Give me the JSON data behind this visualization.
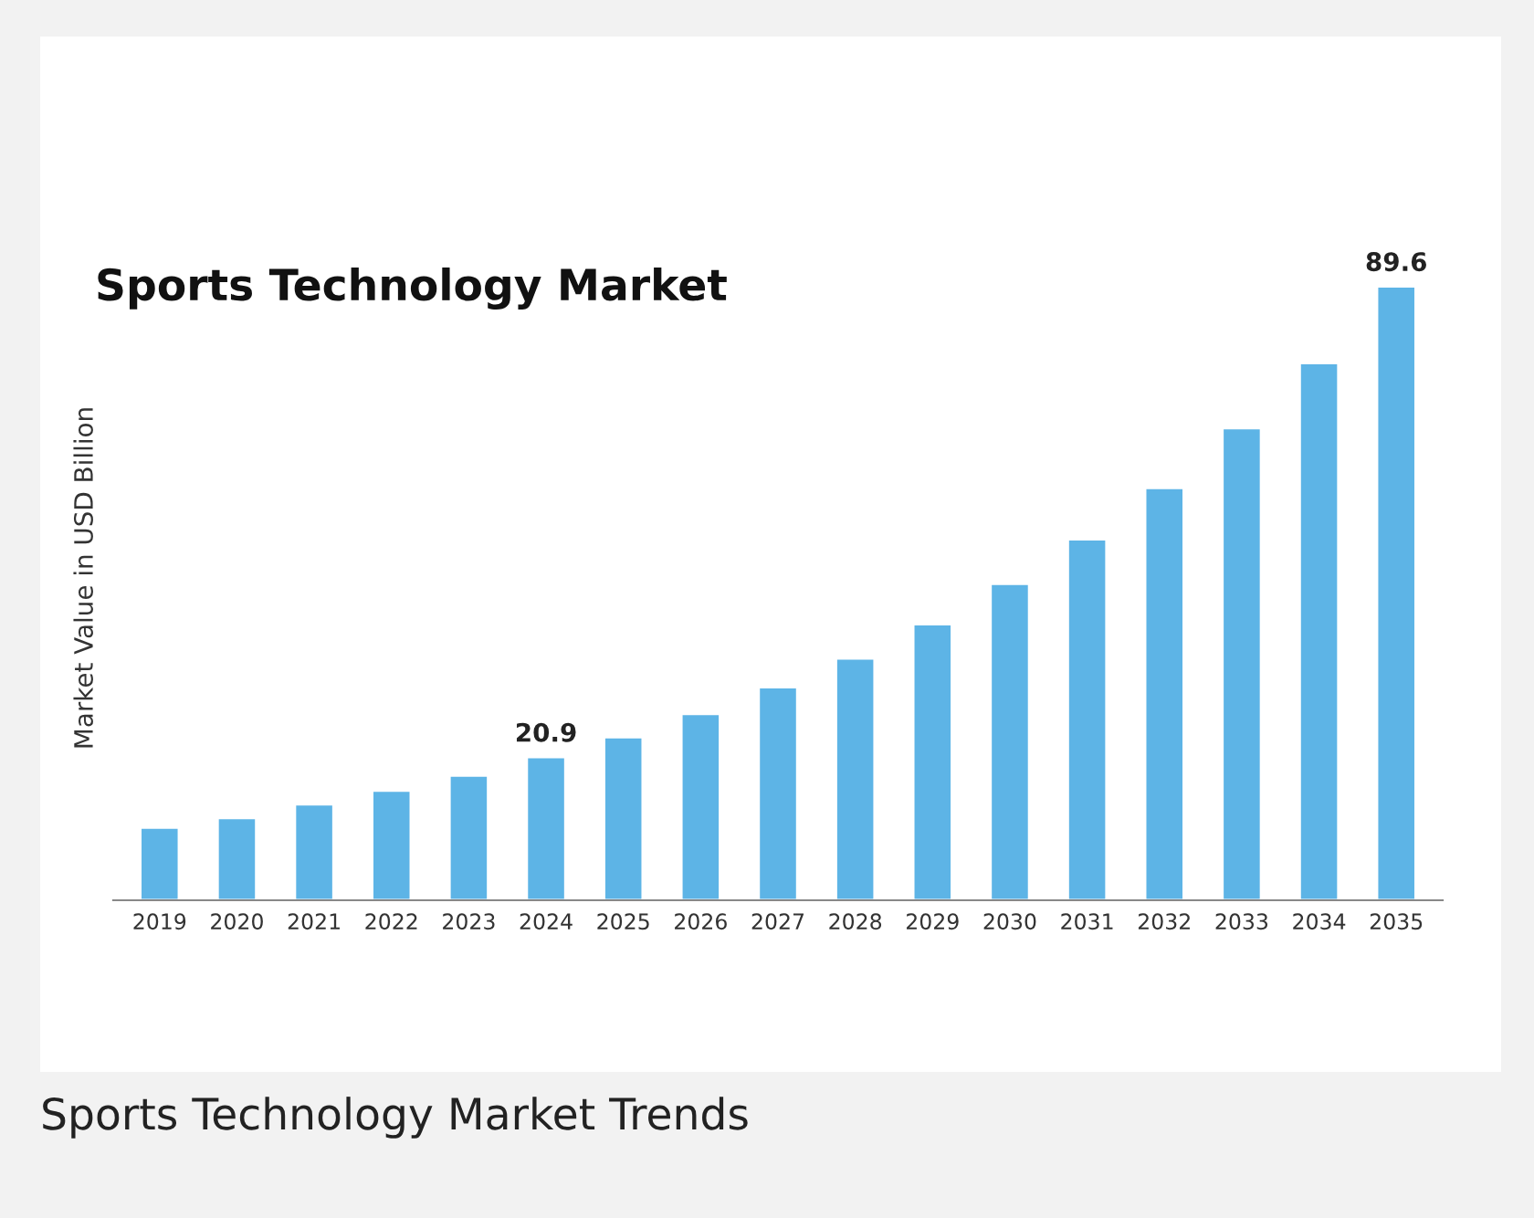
{
  "chart_data": {
    "type": "bar",
    "title": "Sports Technology Market",
    "ylabel": "Market Value in USD Billion",
    "categories": [
      "2019",
      "2020",
      "2021",
      "2022",
      "2023",
      "2024",
      "2025",
      "2026",
      "2027",
      "2028",
      "2029",
      "2030",
      "2031",
      "2032",
      "2033",
      "2034",
      "2035"
    ],
    "values": [
      10.6,
      12.0,
      14.0,
      16.0,
      18.2,
      20.9,
      23.8,
      27.2,
      31.1,
      35.3,
      40.3,
      46.2,
      52.7,
      60.2,
      68.9,
      78.4,
      89.6
    ],
    "value_labels": [
      null,
      null,
      null,
      null,
      null,
      "20.9",
      null,
      null,
      null,
      null,
      null,
      null,
      null,
      null,
      null,
      null,
      "89.6"
    ],
    "color": "#5db4e6",
    "annotations": [
      "Sports Technology Market Trends"
    ],
    "grid": false,
    "legend": false
  }
}
